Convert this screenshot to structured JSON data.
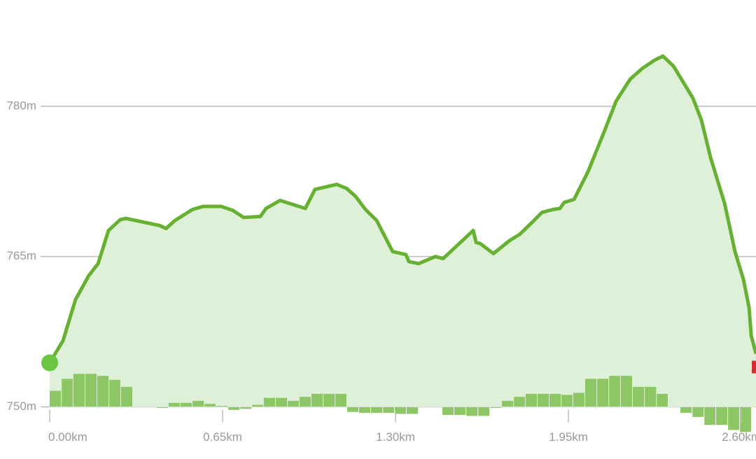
{
  "chart_data": {
    "type": "line",
    "x": [
      0,
      0.05,
      0.097,
      0.147,
      0.182,
      0.221,
      0.266,
      0.287,
      0.413,
      0.437,
      0.471,
      0.537,
      0.576,
      0.645,
      0.689,
      0.729,
      0.792,
      0.813,
      0.866,
      0.961,
      0.997,
      1.079,
      1.116,
      1.15,
      1.187,
      1.229,
      1.289,
      1.339,
      1.35,
      1.387,
      1.45,
      1.479,
      1.592,
      1.603,
      1.618,
      1.668,
      1.729,
      1.766,
      1.813,
      1.85,
      1.892,
      1.918,
      1.934,
      1.971,
      2.024,
      2.076,
      2.129,
      2.182,
      2.229,
      2.274,
      2.305,
      2.345,
      2.418,
      2.45,
      2.484,
      2.537,
      2.576,
      2.608,
      2.629,
      2.637,
      2.655
    ],
    "series": [
      {
        "color": "#66b032",
        "values": [
          754.4,
          756.6,
          760.7,
          763.1,
          764.3,
          767.6,
          768.7,
          768.8,
          768.1,
          767.8,
          768.6,
          769.7,
          770.0,
          770.0,
          769.6,
          768.9,
          769.0,
          769.8,
          770.6,
          769.8,
          771.7,
          772.2,
          771.8,
          771.0,
          769.7,
          768.6,
          765.5,
          765.2,
          764.5,
          764.3,
          765.0,
          764.8,
          767.6,
          766.4,
          766.3,
          765.3,
          766.6,
          767.2,
          768.4,
          769.4,
          769.7,
          769.8,
          770.4,
          770.7,
          773.5,
          776.9,
          780.5,
          782.7,
          783.8,
          784.6,
          785.0,
          784.0,
          780.8,
          778.6,
          774.9,
          770.3,
          765.5,
          762.7,
          759.9,
          757.1,
          755.3
        ]
      }
    ],
    "bars": {
      "color": "#8cc665",
      "bins": [
        0,
        0.045,
        0.089,
        0.134,
        0.179,
        0.224,
        0.268,
        0.313,
        0.358,
        0.403,
        0.447,
        0.492,
        0.537,
        0.582,
        0.626,
        0.671,
        0.716,
        0.761,
        0.805,
        0.85,
        0.895,
        0.939,
        0.984,
        1.029,
        1.074,
        1.118,
        1.163,
        1.208,
        1.253,
        1.297,
        1.342,
        1.387,
        1.432,
        1.476,
        1.521,
        1.566,
        1.611,
        1.655,
        1.7,
        1.745,
        1.789,
        1.834,
        1.879,
        1.924,
        1.968,
        2.013,
        2.058,
        2.103,
        2.147,
        2.192,
        2.237,
        2.282,
        2.326,
        2.371,
        2.416,
        2.461,
        2.505,
        2.55,
        2.595,
        2.639
      ],
      "values": [
        751.6,
        752.8,
        753.3,
        753.3,
        753.1,
        752.7,
        752.0,
        750.0,
        750.0,
        749.9,
        750.4,
        750.4,
        750.6,
        750.3,
        750.1,
        749.7,
        749.8,
        750.2,
        750.9,
        750.9,
        750.6,
        751.0,
        751.3,
        751.3,
        751.3,
        749.5,
        749.4,
        749.4,
        749.4,
        749.3,
        749.3,
        750.0,
        750.0,
        749.2,
        749.2,
        749.1,
        749.1,
        749.9,
        750.6,
        751.0,
        751.3,
        751.3,
        751.3,
        751.2,
        751.4,
        752.8,
        752.8,
        753.1,
        753.1,
        752.0,
        752.0,
        751.3,
        750.0,
        749.4,
        749.0,
        748.2,
        748.2,
        747.7,
        747.5
      ]
    },
    "area_color": "#dff0d8",
    "start_color": "#6cc644",
    "end_color": "#d0312d",
    "xlim": [
      0,
      2.655
    ],
    "ylim": [
      744.8,
      790.6
    ],
    "xticks": [
      {
        "value": 0,
        "label": "0.00km"
      },
      {
        "value": 0.65,
        "label": "0.65km"
      },
      {
        "value": 1.3,
        "label": "1.30km"
      },
      {
        "value": 1.95,
        "label": "1.95km"
      },
      {
        "value": 2.6,
        "label": "2.60km"
      }
    ],
    "yticks": [
      {
        "value": 750,
        "label": "750m"
      },
      {
        "value": 765,
        "label": "765m"
      },
      {
        "value": 780,
        "label": "780m"
      }
    ],
    "grid": true
  }
}
